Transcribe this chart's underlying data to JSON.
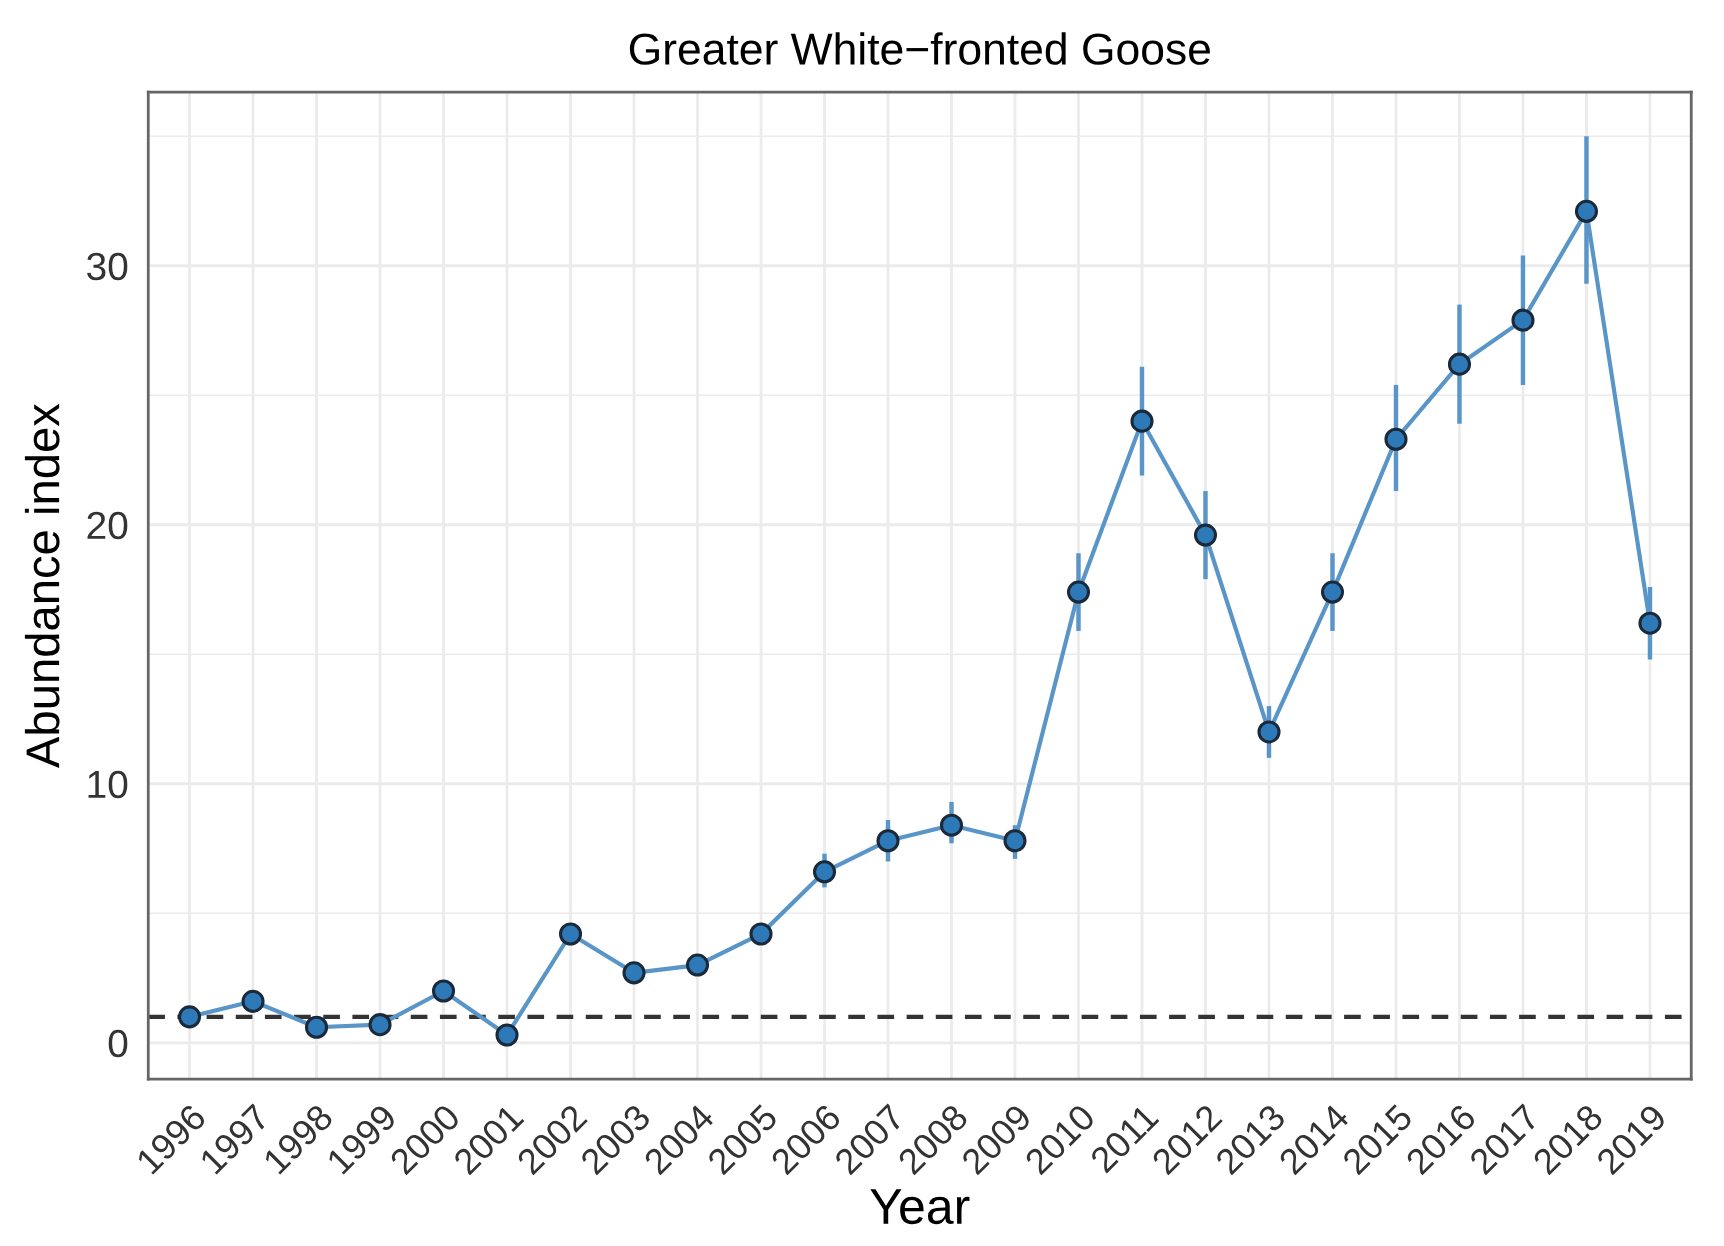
{
  "chart_data": {
    "type": "line",
    "title": "Greater White−fronted Goose",
    "xlabel": "Year",
    "ylabel": "Abundance index",
    "categories": [
      "1996",
      "1997",
      "1998",
      "1999",
      "2000",
      "2001",
      "2002",
      "2003",
      "2004",
      "2005",
      "2006",
      "2007",
      "2008",
      "2009",
      "2010",
      "2011",
      "2012",
      "2013",
      "2014",
      "2015",
      "2016",
      "2017",
      "2018",
      "2019"
    ],
    "series": [
      {
        "color": "#5a95c8",
        "colors": [
          "#2e7ab8",
          "#2e7ab8",
          "#2e7ab8",
          "#2e7ab8",
          "#2e7ab8",
          "#2e7ab8",
          "#2e7ab8",
          "#2e7ab8",
          "#2e7ab8",
          "#2e7ab8",
          "#2e7ab8",
          "#2e7ab8",
          "#2e7ab8",
          "#2e7ab8",
          "#2e7ab8",
          "#2e7ab8",
          "#2e7ab8",
          "#2e7ab8",
          "#2e7ab8",
          "#2e7ab8",
          "#2e7ab8",
          "#2e7ab8",
          "#2e7ab8",
          "#2e7ab8"
        ],
        "values": [
          1.0,
          1.6,
          0.6,
          0.7,
          2.0,
          0.3,
          4.2,
          2.7,
          3.0,
          4.2,
          6.6,
          7.8,
          8.4,
          7.8,
          17.4,
          24.0,
          19.6,
          12.0,
          17.4,
          23.3,
          26.2,
          27.9,
          32.1,
          16.2
        ],
        "errors": [
          null,
          null,
          null,
          null,
          null,
          null,
          null,
          null,
          null,
          null,
          [
            6.0,
            7.3
          ],
          [
            7.0,
            8.6
          ],
          [
            7.7,
            9.3
          ],
          [
            7.1,
            8.4
          ],
          [
            15.9,
            18.9
          ],
          [
            21.9,
            26.1
          ],
          [
            17.9,
            21.3
          ],
          [
            11.0,
            13.0
          ],
          [
            15.9,
            18.9
          ],
          [
            21.3,
            25.4
          ],
          [
            23.9,
            28.5
          ],
          [
            25.4,
            30.4
          ],
          [
            29.3,
            35.0
          ],
          [
            14.8,
            17.6
          ]
        ]
      }
    ],
    "ylim": [
      -1.4,
      36.7
    ],
    "yticks": [
      0,
      10,
      20,
      30
    ],
    "grid": true,
    "marker": "circle",
    "line_style": "solid",
    "ref_lines": [
      {
        "axis": "y",
        "value": 1,
        "line_style": "dashed",
        "color": "#333333"
      }
    ]
  }
}
